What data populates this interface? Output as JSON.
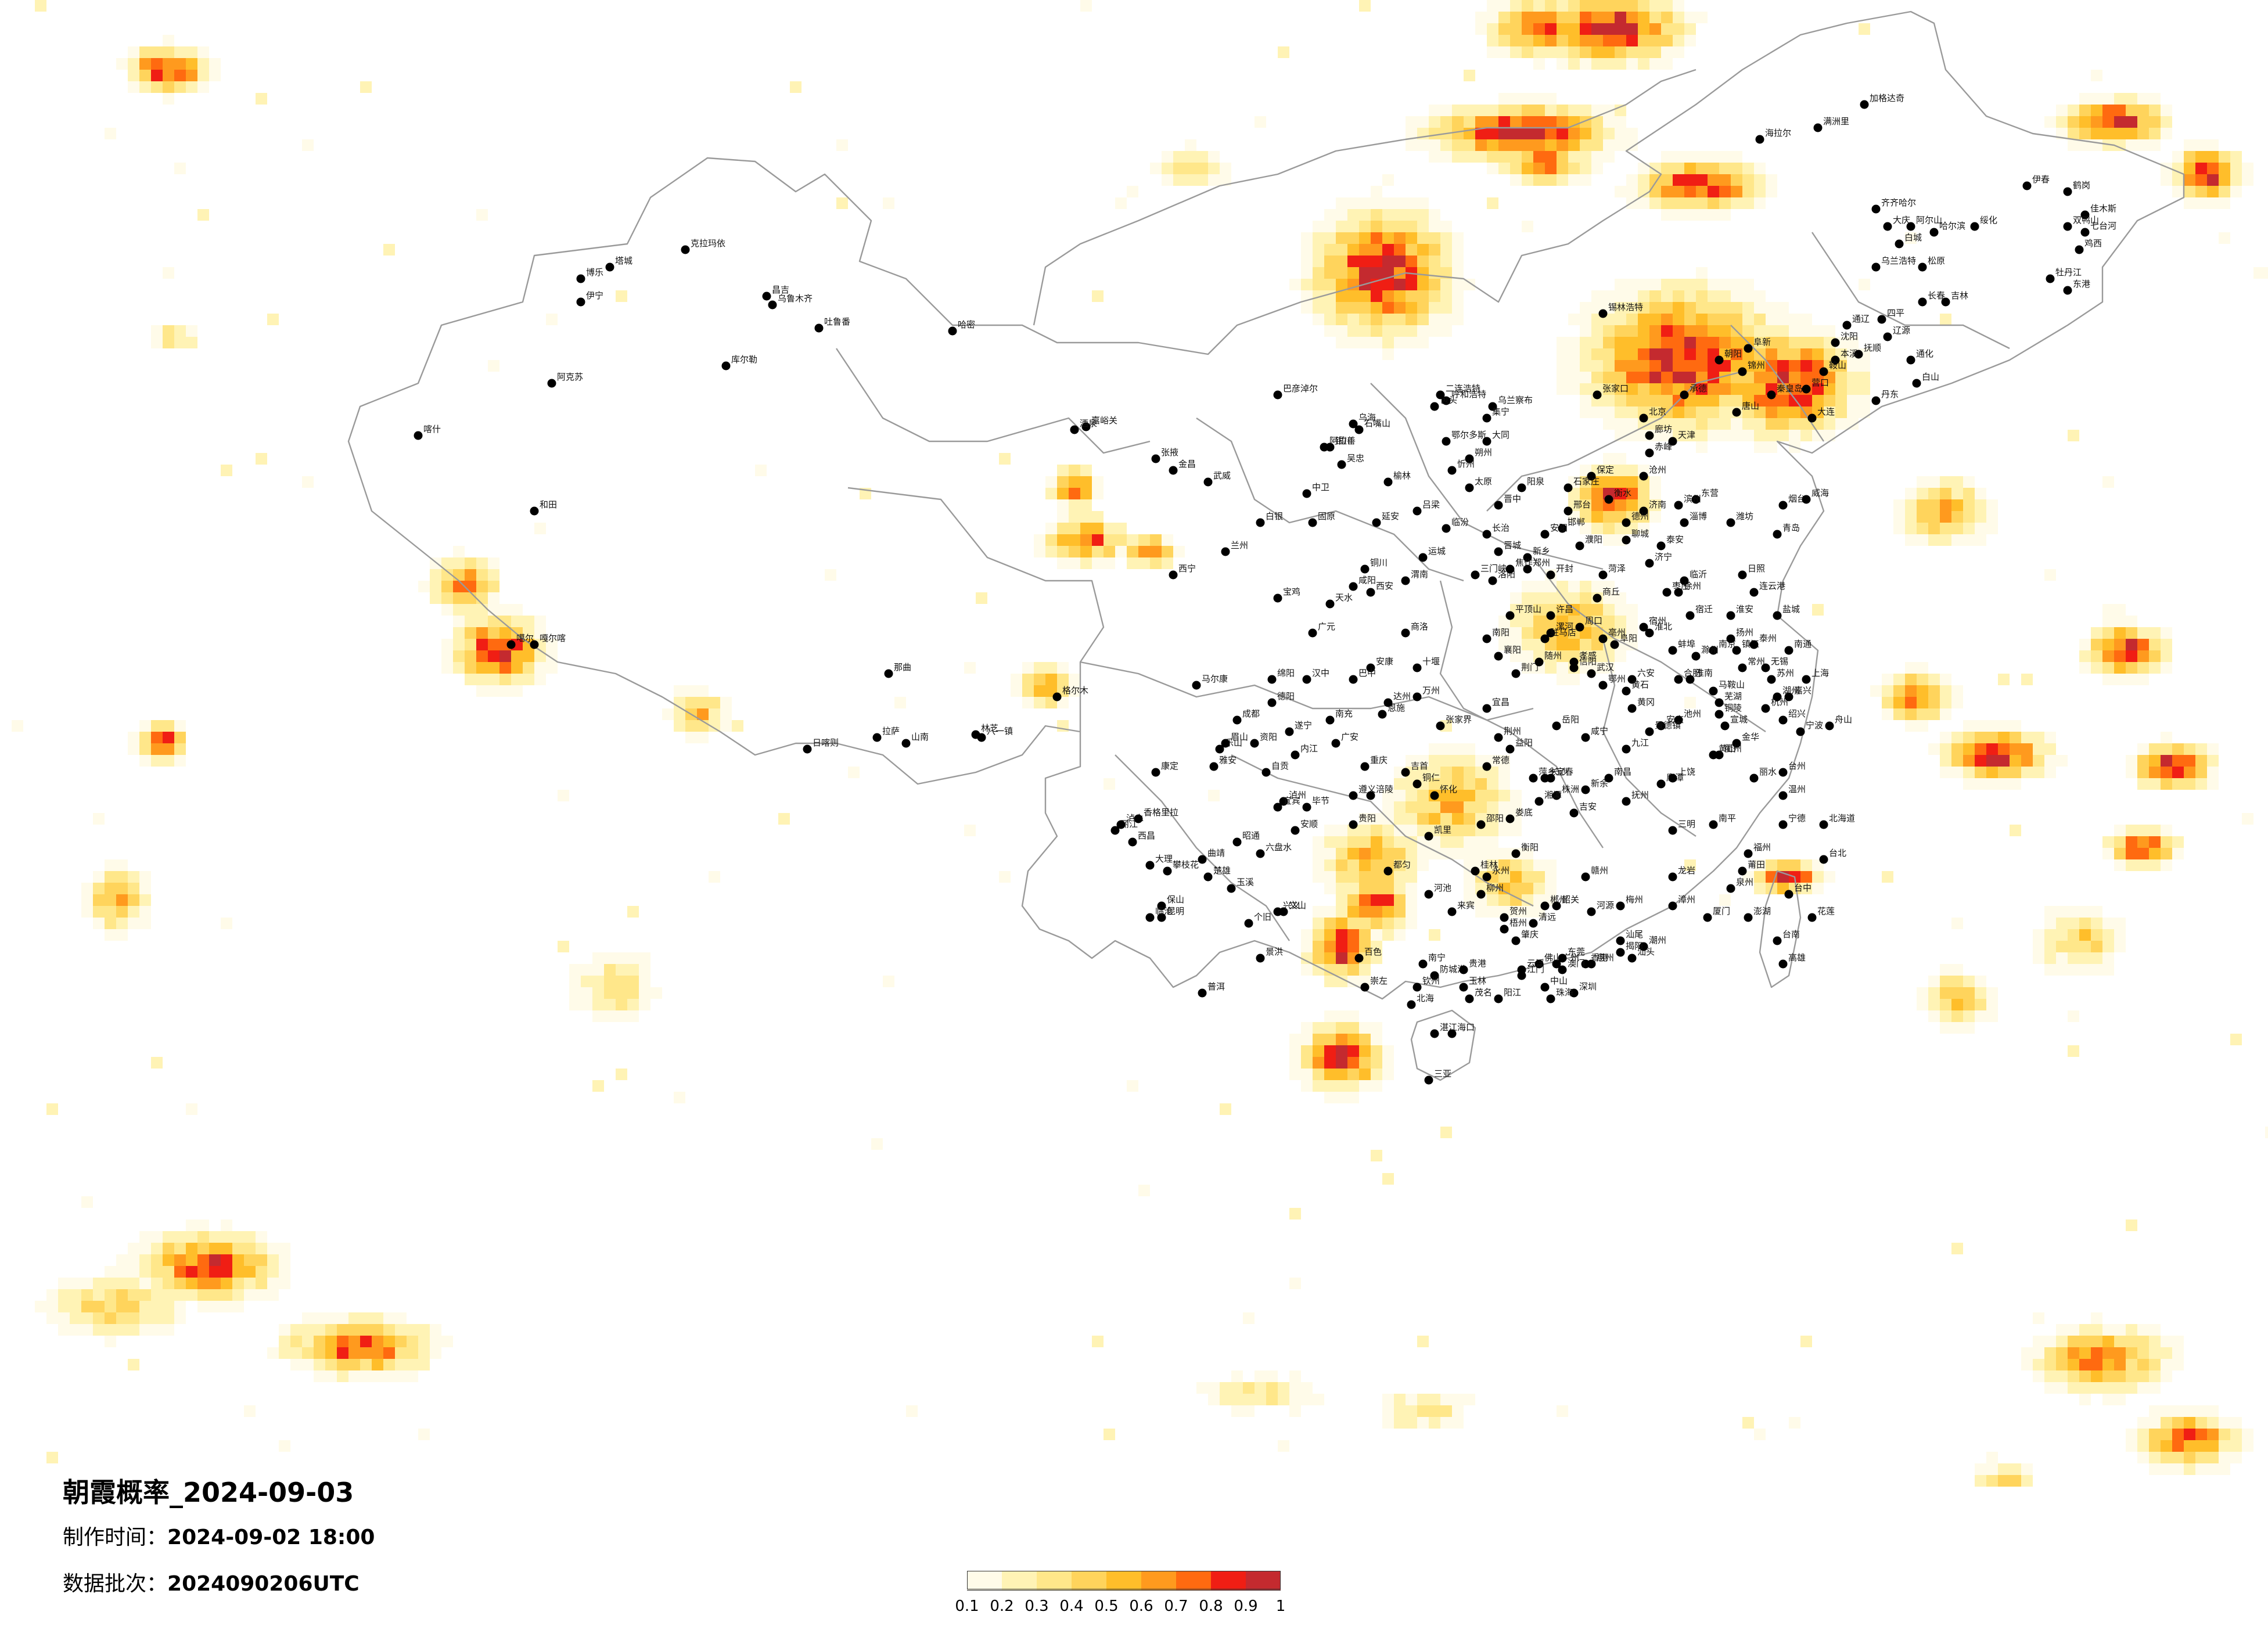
{
  "title": "朝霞概率_2024-09-03",
  "made_time": {
    "label": "制作时间：",
    "value": "2024-09-02 18:00"
  },
  "data_batch": {
    "label": "数据批次：",
    "value": "2024090206UTC"
  },
  "colorbar": {
    "ticks": [
      "0.1",
      "0.2",
      "0.3",
      "0.4",
      "0.5",
      "0.6",
      "0.7",
      "0.8",
      "0.9",
      "1"
    ],
    "colors": [
      "#fffbe9",
      "#fff3b5",
      "#ffe78a",
      "#ffd45c",
      "#ffbe2a",
      "#ff9a1e",
      "#ff6a10",
      "#f01e14",
      "#c42a2f"
    ]
  },
  "colors": {
    "border": "#999999",
    "city_dot": "#000000",
    "background": "#ffffff"
  },
  "cities": [
    "克拉玛依",
    "伊宁",
    "昌吉",
    "乌鲁木齐",
    "吐鲁番",
    "哈密",
    "库尔勒",
    "阿克苏",
    "喀什",
    "和田",
    "塔城",
    "博乐",
    "嘎尔喀",
    "噶尔",
    "日喀则",
    "拉萨",
    "山南",
    "林芝",
    "八一镇",
    "那曲",
    "嘉峪关",
    "酒泉",
    "张掖",
    "金昌",
    "武威",
    "兰州",
    "白银",
    "天水",
    "西宁",
    "格尔木",
    "银川",
    "石嘴山",
    "吴忠",
    "中卫",
    "固原",
    "呼和浩特",
    "包头",
    "鄂尔多斯",
    "乌海",
    "阿拉善",
    "乌兰察布",
    "赤峰",
    "通辽",
    "锡林浩特",
    "海拉尔",
    "满洲里",
    "加格达奇",
    "齐齐哈尔",
    "大庆",
    "哈尔滨",
    "绥化",
    "伊春",
    "鹤岗",
    "佳木斯",
    "双鸭山",
    "七台河",
    "鸡西",
    "牡丹江",
    "长春",
    "吉林",
    "四平",
    "辽源",
    "通化",
    "白山",
    "沈阳",
    "抚顺",
    "本溪",
    "丹东",
    "鞍山",
    "大连",
    "营口",
    "锦州",
    "阜新",
    "朝阳",
    "北京",
    "天津",
    "承德",
    "张家口",
    "唐山",
    "秦皇岛",
    "廊坊",
    "保定",
    "石家庄",
    "衡水",
    "邢台",
    "邯郸",
    "沧州",
    "太原",
    "大同",
    "朔州",
    "忻州",
    "阳泉",
    "晋中",
    "长治",
    "晋城",
    "临汾",
    "运城",
    "吕梁",
    "西安",
    "咸阳",
    "宝鸡",
    "铜川",
    "渭南",
    "延安",
    "榆林",
    "汉中",
    "安康",
    "商洛",
    "郑州",
    "开封",
    "洛阳",
    "平顶山",
    "安阳",
    "新乡",
    "焦作",
    "濮阳",
    "许昌",
    "漯河",
    "三门峡",
    "南阳",
    "商丘",
    "信阳",
    "周口",
    "驻马店",
    "济南",
    "青岛",
    "淄博",
    "枣庄",
    "东营",
    "烟台",
    "潍坊",
    "济宁",
    "泰安",
    "威海",
    "日照",
    "临沂",
    "德州",
    "聊城",
    "滨州",
    "菏泽",
    "南京",
    "无锡",
    "徐州",
    "常州",
    "苏州",
    "南通",
    "连云港",
    "淮安",
    "盐城",
    "扬州",
    "镇江",
    "泰州",
    "宿迁",
    "上海",
    "杭州",
    "宁波",
    "温州",
    "嘉兴",
    "湖州",
    "绍兴",
    "金华",
    "衢州",
    "舟山",
    "台州",
    "丽水",
    "合肥",
    "芜湖",
    "蚌埠",
    "淮南",
    "马鞍山",
    "淮北",
    "铜陵",
    "安庆",
    "黄山",
    "滁州",
    "阜阳",
    "宿州",
    "六安",
    "亳州",
    "池州",
    "宣城",
    "福州",
    "厦门",
    "莆田",
    "三明",
    "泉州",
    "漳州",
    "南平",
    "龙岩",
    "宁德",
    "南昌",
    "景德镇",
    "萍乡",
    "九江",
    "新余",
    "鹰潭",
    "赣州",
    "吉安",
    "宜春",
    "抚州",
    "上饶",
    "武汉",
    "黄石",
    "十堰",
    "宜昌",
    "襄阳",
    "鄂州",
    "荆门",
    "孝感",
    "荆州",
    "黄冈",
    "咸宁",
    "随州",
    "恩施",
    "长沙",
    "株洲",
    "湘潭",
    "衡阳",
    "邵阳",
    "岳阳",
    "常德",
    "张家界",
    "益阳",
    "郴州",
    "永州",
    "怀化",
    "娄底",
    "吉首",
    "广州",
    "韶关",
    "深圳",
    "珠海",
    "汕头",
    "佛山",
    "江门",
    "湛江",
    "茂名",
    "肇庆",
    "惠州",
    "梅州",
    "汕尾",
    "河源",
    "阳江",
    "清远",
    "东莞",
    "中山",
    "潮州",
    "揭阳",
    "云浮",
    "南宁",
    "柳州",
    "桂林",
    "梧州",
    "北海",
    "防城港",
    "钦州",
    "贵港",
    "玉林",
    "百色",
    "贺州",
    "河池",
    "来宾",
    "崇左",
    "海口",
    "三亚",
    "成都",
    "自贡",
    "攀枝花",
    "泸州",
    "德阳",
    "绵阳",
    "广元",
    "遂宁",
    "内江",
    "乐山",
    "南充",
    "眉山",
    "宜宾",
    "广安",
    "达州",
    "雅安",
    "巴中",
    "资阳",
    "马尔康",
    "康定",
    "西昌",
    "重庆",
    "万州",
    "涪陵",
    "贵阳",
    "六盘水",
    "遵义",
    "安顺",
    "毕节",
    "铜仁",
    "凯里",
    "都匀",
    "兴义",
    "昆明",
    "曲靖",
    "玉溪",
    "保山",
    "昭通",
    "丽江",
    "普洱",
    "临沧",
    "楚雄",
    "个旧",
    "文山",
    "景洪",
    "大理",
    "泸水",
    "香格里拉",
    "台北",
    "台中",
    "台南",
    "高雄",
    "花莲",
    "澎湖",
    "香港",
    "澳门",
    "北海道",
    "东港",
    "乌兰浩特",
    "白城",
    "松原",
    "阿尔山",
    "二连浩特",
    "集宁",
    "巴彦淖尔"
  ]
}
